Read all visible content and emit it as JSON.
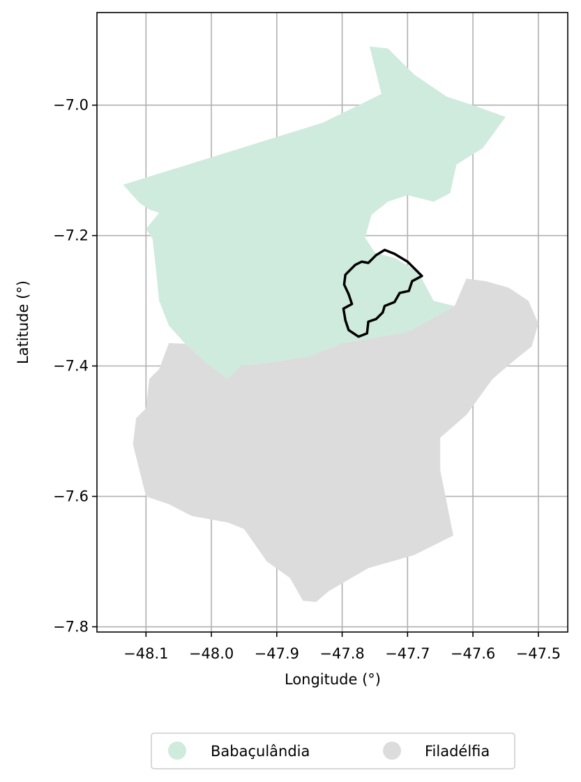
{
  "map": {
    "xlabel": "Longitude (°)",
    "ylabel": "Latitude (°)",
    "grid": true,
    "xlim": [
      -48.175,
      -47.455
    ],
    "ylim": [
      -7.808,
      -6.858
    ],
    "x_ticks": [
      -48.1,
      -48.0,
      -47.9,
      -47.8,
      -47.7,
      -47.6,
      -47.5
    ],
    "y_ticks": [
      -7.8,
      -7.6,
      -7.4,
      -7.2,
      -7.0
    ],
    "x_tick_labels": [
      "−48.1",
      "−48.0",
      "−47.9",
      "−47.8",
      "−47.7",
      "−47.6",
      "−47.5"
    ],
    "y_tick_labels": [
      "−7.8",
      "−7.6",
      "−7.4",
      "−7.2",
      "−7.0"
    ],
    "legend": {
      "placement": "bottom-center",
      "entries": [
        {
          "label": "Babaçulândia",
          "color": "#cfebdd"
        },
        {
          "label": "Filadélfia",
          "color": "#dcdcdc"
        }
      ]
    },
    "regions": [
      {
        "name": "Babaçulândia",
        "color": "#cfebdd",
        "coords": [
          [
            -48.135,
            -7.122
          ],
          [
            -47.83,
            -7.027
          ],
          [
            -47.74,
            -6.983
          ],
          [
            -47.758,
            -6.91
          ],
          [
            -47.73,
            -6.913
          ],
          [
            -47.69,
            -6.953
          ],
          [
            -47.64,
            -6.987
          ],
          [
            -47.6,
            -7.0
          ],
          [
            -47.55,
            -7.018
          ],
          [
            -47.585,
            -7.066
          ],
          [
            -47.625,
            -7.091
          ],
          [
            -47.635,
            -7.135
          ],
          [
            -47.66,
            -7.148
          ],
          [
            -47.7,
            -7.138
          ],
          [
            -47.73,
            -7.148
          ],
          [
            -47.755,
            -7.168
          ],
          [
            -47.765,
            -7.203
          ],
          [
            -47.75,
            -7.226
          ],
          [
            -47.718,
            -7.235
          ],
          [
            -47.69,
            -7.252
          ],
          [
            -47.68,
            -7.263
          ],
          [
            -47.66,
            -7.3
          ],
          [
            -47.628,
            -7.308
          ],
          [
            -47.7,
            -7.348
          ],
          [
            -47.8,
            -7.365
          ],
          [
            -47.85,
            -7.385
          ],
          [
            -47.9,
            -7.393
          ],
          [
            -47.955,
            -7.4
          ],
          [
            -47.975,
            -7.42
          ],
          [
            -48.0,
            -7.402
          ],
          [
            -48.04,
            -7.366
          ],
          [
            -48.065,
            -7.338
          ],
          [
            -48.08,
            -7.3
          ],
          [
            -48.085,
            -7.25
          ],
          [
            -48.09,
            -7.205
          ],
          [
            -48.1,
            -7.19
          ],
          [
            -48.08,
            -7.165
          ],
          [
            -48.095,
            -7.16
          ],
          [
            -48.11,
            -7.15
          ],
          [
            -48.135,
            -7.122
          ]
        ]
      },
      {
        "name": "Filadélfia",
        "color": "#dcdcdc",
        "coords": [
          [
            -48.065,
            -7.365
          ],
          [
            -48.04,
            -7.366
          ],
          [
            -48.0,
            -7.402
          ],
          [
            -47.975,
            -7.42
          ],
          [
            -47.955,
            -7.4
          ],
          [
            -47.9,
            -7.393
          ],
          [
            -47.85,
            -7.385
          ],
          [
            -47.8,
            -7.365
          ],
          [
            -47.7,
            -7.348
          ],
          [
            -47.628,
            -7.308
          ],
          [
            -47.61,
            -7.266
          ],
          [
            -47.58,
            -7.27
          ],
          [
            -47.545,
            -7.28
          ],
          [
            -47.515,
            -7.3
          ],
          [
            -47.5,
            -7.335
          ],
          [
            -47.51,
            -7.37
          ],
          [
            -47.535,
            -7.39
          ],
          [
            -47.57,
            -7.42
          ],
          [
            -47.61,
            -7.475
          ],
          [
            -47.65,
            -7.51
          ],
          [
            -47.65,
            -7.56
          ],
          [
            -47.64,
            -7.61
          ],
          [
            -47.63,
            -7.66
          ],
          [
            -47.69,
            -7.69
          ],
          [
            -47.76,
            -7.71
          ],
          [
            -47.82,
            -7.745
          ],
          [
            -47.84,
            -7.762
          ],
          [
            -47.86,
            -7.76
          ],
          [
            -47.88,
            -7.725
          ],
          [
            -47.915,
            -7.7
          ],
          [
            -47.95,
            -7.65
          ],
          [
            -47.975,
            -7.64
          ],
          [
            -48.03,
            -7.63
          ],
          [
            -48.065,
            -7.612
          ],
          [
            -48.1,
            -7.6
          ],
          [
            -48.11,
            -7.56
          ],
          [
            -48.12,
            -7.52
          ],
          [
            -48.115,
            -7.48
          ],
          [
            -48.1,
            -7.465
          ],
          [
            -48.095,
            -7.42
          ],
          [
            -48.08,
            -7.405
          ],
          [
            -48.065,
            -7.365
          ]
        ]
      }
    ],
    "highlight_outline": {
      "color": "#000000",
      "coords": [
        [
          -47.735,
          -7.222
        ],
        [
          -47.72,
          -7.228
        ],
        [
          -47.7,
          -7.24
        ],
        [
          -47.685,
          -7.255
        ],
        [
          -47.678,
          -7.262
        ],
        [
          -47.693,
          -7.27
        ],
        [
          -47.698,
          -7.285
        ],
        [
          -47.712,
          -7.288
        ],
        [
          -47.72,
          -7.302
        ],
        [
          -47.735,
          -7.308
        ],
        [
          -47.738,
          -7.318
        ],
        [
          -47.748,
          -7.328
        ],
        [
          -47.76,
          -7.332
        ],
        [
          -47.762,
          -7.35
        ],
        [
          -47.775,
          -7.355
        ],
        [
          -47.79,
          -7.345
        ],
        [
          -47.795,
          -7.33
        ],
        [
          -47.798,
          -7.312
        ],
        [
          -47.785,
          -7.305
        ],
        [
          -47.79,
          -7.29
        ],
        [
          -47.797,
          -7.275
        ],
        [
          -47.795,
          -7.26
        ],
        [
          -47.78,
          -7.245
        ],
        [
          -47.77,
          -7.24
        ],
        [
          -47.76,
          -7.242
        ],
        [
          -47.748,
          -7.23
        ],
        [
          -47.735,
          -7.222
        ]
      ]
    }
  }
}
